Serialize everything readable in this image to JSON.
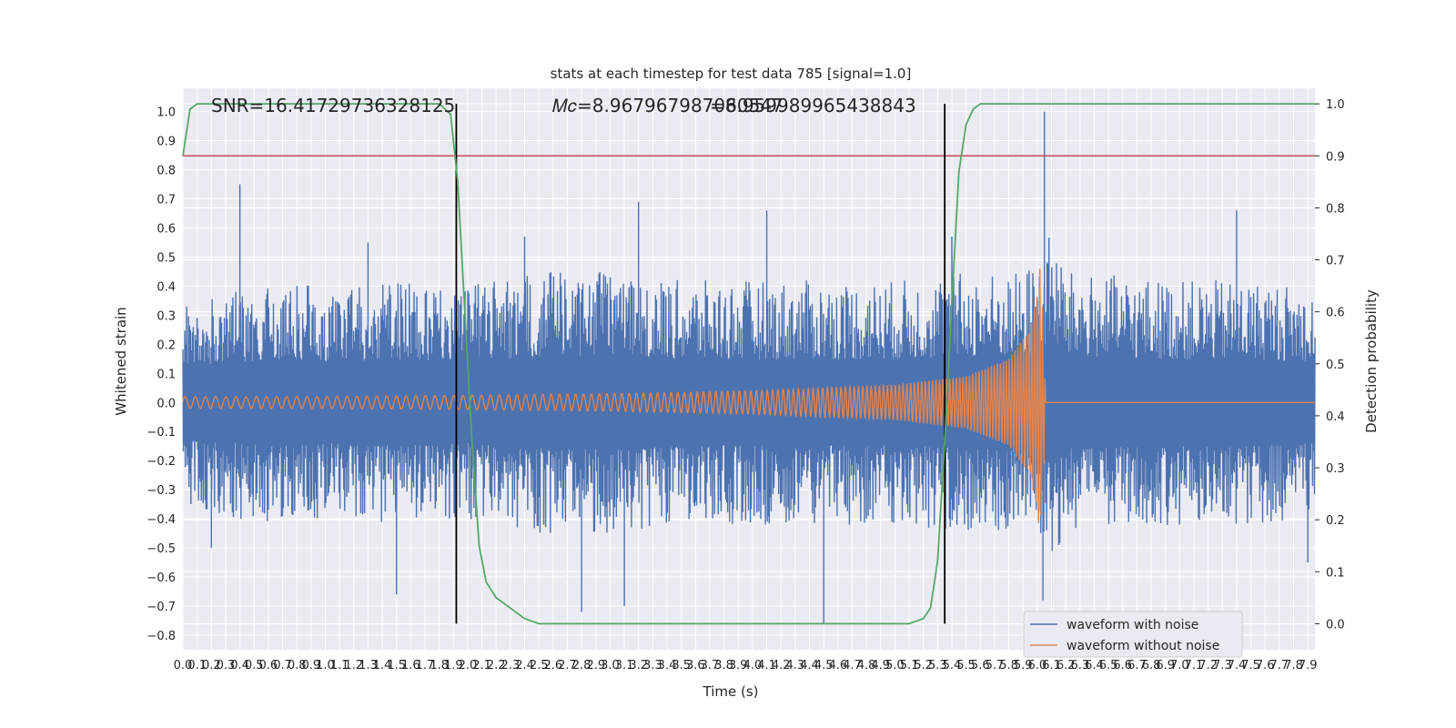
{
  "chart_data": {
    "type": "line",
    "title": "stats at each timestep for test data 785 [signal=1.0]",
    "xlabel": "Time (s)",
    "ylabel": "Whitened strain",
    "y2label": "Detection probability",
    "xlim": [
      0.0,
      7.95
    ],
    "ylim": [
      -0.85,
      1.08
    ],
    "y2lim": [
      -0.05,
      1.03
    ],
    "xticks": [
      0.0,
      0.1,
      0.2,
      0.3,
      0.4,
      0.5,
      0.6,
      0.7,
      0.8,
      0.9,
      1.0,
      1.1,
      1.2,
      1.3,
      1.4,
      1.5,
      1.6,
      1.7,
      1.8,
      1.9,
      2.0,
      2.1,
      2.2,
      2.3,
      2.4,
      2.5,
      2.6,
      2.7,
      2.8,
      2.9,
      3.0,
      3.1,
      3.2,
      3.3,
      3.4,
      3.5,
      3.6,
      3.7,
      3.8,
      3.9,
      4.0,
      4.1,
      4.2,
      4.3,
      4.4,
      4.5,
      4.6,
      4.7,
      4.8,
      4.9,
      5.0,
      5.1,
      5.2,
      5.3,
      5.4,
      5.5,
      5.6,
      5.7,
      5.8,
      5.9,
      6.0,
      6.1,
      6.2,
      6.3,
      6.4,
      6.5,
      6.6,
      6.7,
      6.8,
      6.9,
      7.0,
      7.1,
      7.2,
      7.3,
      7.4,
      7.5,
      7.6,
      7.7,
      7.8,
      7.9
    ],
    "xtick_labels": [
      "0.0",
      "0.1",
      "0.2",
      "0.3",
      "0.4",
      "0.5",
      "0.6",
      "0.7",
      "0.8",
      "0.9",
      "1.0",
      "1.1",
      "1.2",
      "1.3",
      "1.4",
      "1.5",
      "1.6",
      "1.7",
      "1.8",
      "1.9",
      "2.0",
      "2.1",
      "2.2",
      "2.3",
      "2.4",
      "2.5",
      "2.6",
      "2.7",
      "2.8",
      "2.9",
      "3.0",
      "3.1",
      "3.2",
      "3.3",
      "3.4",
      "3.5",
      "3.6",
      "3.7",
      "3.8",
      "3.9",
      "4.0",
      "4.1",
      "4.2",
      "4.3",
      "4.4",
      "4.5",
      "4.6",
      "4.7",
      "4.8",
      "4.9",
      "5.0",
      "5.1",
      "5.2",
      "5.3",
      "5.4",
      "5.5",
      "5.6",
      "5.7",
      "5.8",
      "5.9",
      "6.0",
      "6.1",
      "6.2",
      "6.3",
      "6.4",
      "6.5",
      "6.6",
      "6.7",
      "6.8",
      "6.9",
      "7.0",
      "7.1",
      "7.2",
      "7.3",
      "7.4",
      "7.5",
      "7.6",
      "7.7",
      "7.8",
      "7.9"
    ],
    "yticks": [
      -0.8,
      -0.7,
      -0.6,
      -0.5,
      -0.4,
      -0.3,
      -0.2,
      -0.1,
      0.0,
      0.1,
      0.2,
      0.3,
      0.4,
      0.5,
      0.6,
      0.7,
      0.8,
      0.9,
      1.0
    ],
    "ytick_labels": [
      "−0.8",
      "−0.7",
      "−0.6",
      "−0.5",
      "−0.4",
      "−0.3",
      "−0.2",
      "−0.1",
      "0.0",
      "0.1",
      "0.2",
      "0.3",
      "0.4",
      "0.5",
      "0.6",
      "0.7",
      "0.8",
      "0.9",
      "1.0"
    ],
    "y2ticks": [
      0.0,
      0.1,
      0.2,
      0.3,
      0.4,
      0.5,
      0.6,
      0.7,
      0.8,
      0.9,
      1.0
    ],
    "y2tick_labels": [
      "0.0",
      "0.1",
      "0.2",
      "0.3",
      "0.4",
      "0.5",
      "0.6",
      "0.7",
      "0.8",
      "0.9",
      "1.0"
    ],
    "series": [
      {
        "name": "waveform with noise",
        "color": "#4c72b0",
        "description_envelope_upper": [
          [
            0.0,
            0.35
          ],
          [
            0.4,
            0.4
          ],
          [
            0.7,
            0.42
          ],
          [
            1.0,
            0.4
          ],
          [
            1.5,
            0.42
          ],
          [
            2.0,
            0.4
          ],
          [
            2.5,
            0.45
          ],
          [
            3.0,
            0.45
          ],
          [
            3.5,
            0.42
          ],
          [
            4.0,
            0.42
          ],
          [
            4.5,
            0.42
          ],
          [
            5.0,
            0.42
          ],
          [
            5.5,
            0.45
          ],
          [
            5.9,
            0.45
          ],
          [
            6.0,
            0.5
          ],
          [
            6.1,
            0.6
          ],
          [
            6.2,
            0.45
          ],
          [
            7.0,
            0.42
          ],
          [
            7.5,
            0.42
          ],
          [
            7.95,
            0.4
          ]
        ],
        "peaks": [
          [
            0.4,
            0.75
          ],
          [
            1.3,
            0.55
          ],
          [
            2.4,
            0.57
          ],
          [
            3.2,
            0.69
          ],
          [
            4.1,
            0.66
          ],
          [
            5.4,
            0.57
          ],
          [
            6.05,
            1.0
          ],
          [
            7.4,
            0.66
          ],
          [
            2.8,
            -0.72
          ],
          [
            4.5,
            -0.76
          ],
          [
            1.5,
            -0.66
          ],
          [
            0.2,
            -0.5
          ],
          [
            7.9,
            -0.55
          ],
          [
            6.04,
            -0.68
          ],
          [
            3.1,
            -0.7
          ]
        ]
      },
      {
        "name": "waveform without noise",
        "color": "#dd8452",
        "amplitude": [
          [
            0.0,
            0.02
          ],
          [
            1.0,
            0.02
          ],
          [
            2.0,
            0.025
          ],
          [
            3.0,
            0.03
          ],
          [
            4.0,
            0.04
          ],
          [
            5.0,
            0.06
          ],
          [
            5.5,
            0.09
          ],
          [
            5.8,
            0.15
          ],
          [
            5.95,
            0.25
          ],
          [
            6.0,
            0.38
          ],
          [
            6.02,
            0.47
          ],
          [
            6.04,
            0.3
          ],
          [
            6.06,
            0.0
          ],
          [
            7.95,
            0.0
          ]
        ]
      },
      {
        "name": "Detection probability",
        "color": "#55a868",
        "axis": "right",
        "x": [
          0.0,
          0.05,
          0.1,
          0.2,
          0.4,
          0.8,
          1.2,
          1.6,
          1.8,
          1.88,
          1.93,
          1.98,
          2.03,
          2.08,
          2.13,
          2.2,
          2.3,
          2.4,
          2.5,
          2.6,
          3.0,
          3.5,
          4.0,
          4.5,
          5.0,
          5.1,
          5.2,
          5.25,
          5.3,
          5.35,
          5.4,
          5.45,
          5.5,
          5.55,
          5.6,
          5.7,
          6.0,
          7.95
        ],
        "values": [
          0.9,
          0.99,
          1.0,
          1.0,
          1.0,
          1.0,
          1.0,
          1.0,
          1.0,
          0.98,
          0.85,
          0.6,
          0.35,
          0.15,
          0.08,
          0.05,
          0.03,
          0.01,
          0.0,
          0.0,
          0.0,
          0.0,
          0.0,
          0.0,
          0.0,
          0.0,
          0.01,
          0.03,
          0.12,
          0.35,
          0.62,
          0.87,
          0.96,
          0.99,
          1.0,
          1.0,
          1.0,
          1.0
        ]
      }
    ],
    "threshold_line": {
      "y2": 0.9,
      "color": "#c44e52"
    },
    "vertical_lines": [
      {
        "x": 1.92,
        "color": "#000000"
      },
      {
        "x": 5.35,
        "color": "#000000"
      }
    ],
    "annotations": [
      {
        "text": "SNR=16.41729736328125"
      },
      {
        "text": "𝑀𝑐=8.967967987060547"
      },
      {
        "text": "=8.959989965438843"
      }
    ],
    "grid": true,
    "legend_position": "lower-right",
    "background_color": "#eaeaf2"
  }
}
